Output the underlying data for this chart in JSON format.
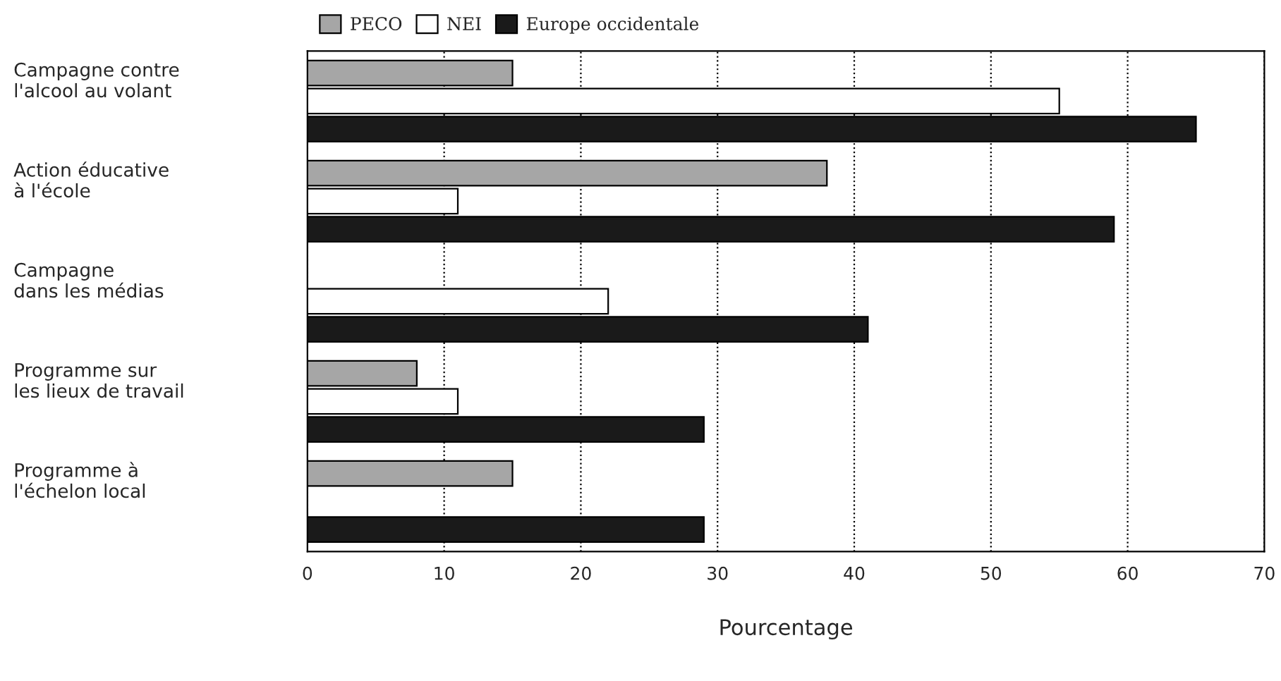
{
  "chart_data": {
    "type": "bar",
    "orientation": "horizontal",
    "xlabel": "Pourcentage",
    "categories": [
      "Campagne contre\nl'alcool au volant",
      "Action éducative\nà l'école",
      "Campagne\ndans les médias",
      "Programme sur\nles lieux de travail",
      "Programme à\nl'échelon local"
    ],
    "series": [
      {
        "name": "PECO",
        "color": "#a6a6a6",
        "values": [
          15,
          38,
          null,
          8,
          15
        ]
      },
      {
        "name": "NEI",
        "color": "#ffffff",
        "values": [
          55,
          11,
          22,
          11,
          null
        ]
      },
      {
        "name": "Europe occidentale",
        "color": "#1a1a1a",
        "values": [
          65,
          59,
          41,
          29,
          29
        ]
      }
    ],
    "xlim": [
      0,
      70
    ],
    "xticks": [
      0,
      10,
      20,
      30,
      40,
      50,
      60,
      70
    ],
    "grid": "x",
    "legend": "top"
  }
}
